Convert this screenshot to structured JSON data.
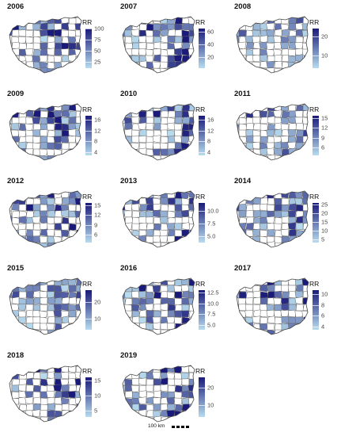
{
  "legend_title": "RR",
  "colors": {
    "high": "#1a1a7a",
    "low": "#b8dcee",
    "mid": "#6a6ac8",
    "light": "#a9cfe6",
    "empty": "#ffffff",
    "border": "#666666"
  },
  "scale_bar_label": "100 km",
  "panels": [
    {
      "year": "2006",
      "ticks": [
        "100",
        "75",
        "50",
        "25"
      ],
      "tick_pos": [
        0.0,
        0.27,
        0.55,
        0.83
      ],
      "max_level": 0.9
    },
    {
      "year": "2007",
      "ticks": [
        "60",
        "40",
        "20"
      ],
      "tick_pos": [
        0.08,
        0.4,
        0.72
      ],
      "max_level": 0.9
    },
    {
      "year": "2008",
      "ticks": [
        "20",
        "10"
      ],
      "tick_pos": [
        0.2,
        0.68
      ],
      "max_level": 0.6
    },
    {
      "year": "2009",
      "ticks": [
        "16",
        "12",
        "8",
        "4"
      ],
      "tick_pos": [
        0.1,
        0.37,
        0.64,
        0.91
      ],
      "max_level": 0.9
    },
    {
      "year": "2010",
      "ticks": [
        "16",
        "12",
        "8",
        "4"
      ],
      "tick_pos": [
        0.1,
        0.37,
        0.64,
        0.91
      ],
      "max_level": 0.9
    },
    {
      "year": "2011",
      "ticks": [
        "15",
        "12",
        "9",
        "6"
      ],
      "tick_pos": [
        0.05,
        0.3,
        0.55,
        0.8
      ],
      "max_level": 0.7
    },
    {
      "year": "2012",
      "ticks": [
        "15",
        "12",
        "9",
        "6"
      ],
      "tick_pos": [
        0.05,
        0.3,
        0.55,
        0.8
      ],
      "max_level": 0.8
    },
    {
      "year": "2013",
      "ticks": [
        "10.0",
        "7.5",
        "5.0"
      ],
      "tick_pos": [
        0.2,
        0.52,
        0.84
      ],
      "max_level": 0.9
    },
    {
      "year": "2014",
      "ticks": [
        "25",
        "20",
        "15",
        "10",
        "5"
      ],
      "tick_pos": [
        0.04,
        0.26,
        0.48,
        0.7,
        0.92
      ],
      "max_level": 0.8
    },
    {
      "year": "2015",
      "ticks": [
        "20",
        "10"
      ],
      "tick_pos": [
        0.3,
        0.72
      ],
      "max_level": 0.6
    },
    {
      "year": "2016",
      "ticks": [
        "12.5",
        "10.0",
        "7.5",
        "5.0"
      ],
      "tick_pos": [
        0.06,
        0.33,
        0.6,
        0.87
      ],
      "max_level": 0.9
    },
    {
      "year": "2017",
      "ticks": [
        "10",
        "8",
        "6",
        "4"
      ],
      "tick_pos": [
        0.1,
        0.37,
        0.64,
        0.91
      ],
      "max_level": 1.0
    },
    {
      "year": "2018",
      "ticks": [
        "15",
        "10",
        "5"
      ],
      "tick_pos": [
        0.08,
        0.46,
        0.84
      ],
      "max_level": 0.95
    },
    {
      "year": "2019",
      "ticks": [
        "20",
        "10"
      ],
      "tick_pos": [
        0.25,
        0.7
      ],
      "max_level": 0.95
    }
  ]
}
